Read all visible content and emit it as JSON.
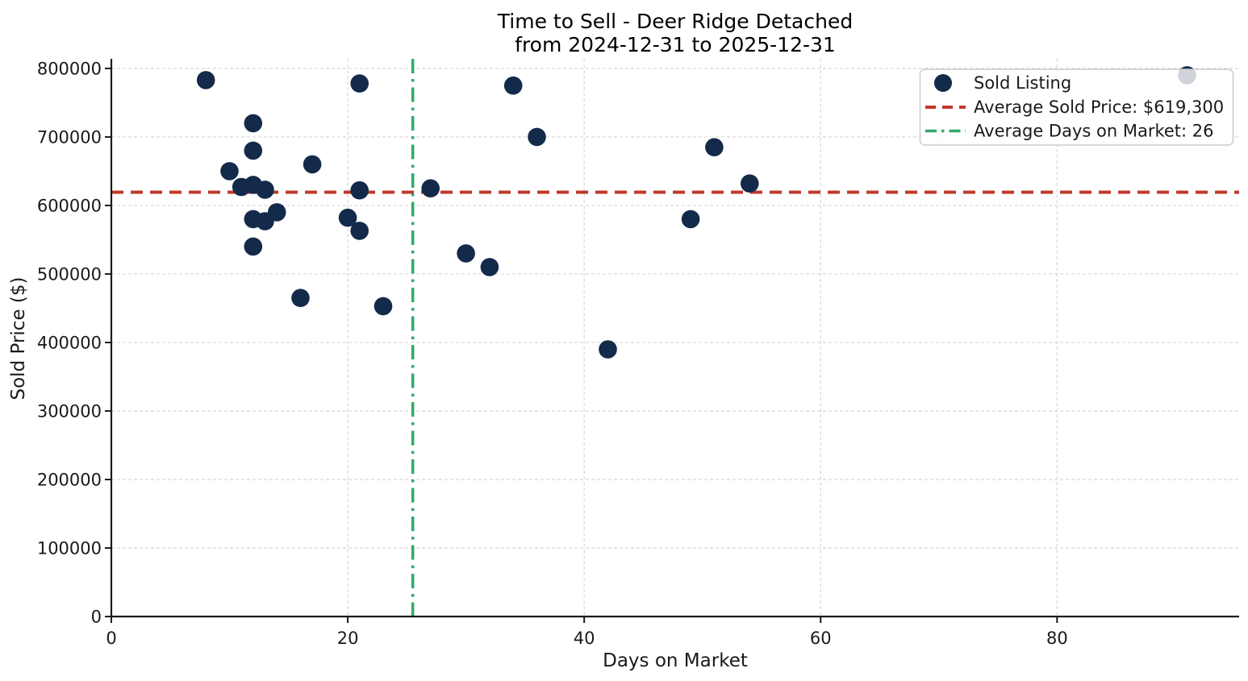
{
  "title": {
    "line1": "Time to Sell - Deer Ridge Detached",
    "line2": "from 2024-12-31 to 2025-12-31"
  },
  "axes": {
    "xlabel": "Days on Market",
    "ylabel": "Sold Price ($)"
  },
  "legend": {
    "items": [
      {
        "label": "Sold Listing",
        "marker": "dot"
      },
      {
        "label": "Average Sold Price: $619,300",
        "marker": "dashed-line"
      },
      {
        "label": "Average Days on Market: 26",
        "marker": "dashdot-line"
      }
    ]
  },
  "colors": {
    "point": "#132a4a",
    "point_faded": "#c2cbd6",
    "avg_price_line": "#c0392b",
    "avg_days_line": "#33a86c",
    "grid": "#d8d8d8",
    "spine": "#1a1a1a",
    "legend_border": "#cccccc"
  },
  "chart_data": {
    "type": "scatter",
    "title": "Time to Sell - Deer Ridge Detached from 2024-12-31 to 2025-12-31",
    "xlabel": "Days on Market",
    "ylabel": "Sold Price ($)",
    "xlim": [
      0,
      95.4
    ],
    "ylim": [
      0,
      814000
    ],
    "x_ticks": [
      0,
      20,
      40,
      60,
      80
    ],
    "y_ticks": [
      0,
      100000,
      200000,
      300000,
      400000,
      500000,
      600000,
      700000,
      800000
    ],
    "grid": true,
    "legend_position": "upper right",
    "series": [
      {
        "name": "Sold Listing",
        "points": [
          [
            8,
            783000
          ],
          [
            10,
            650000
          ],
          [
            11,
            627000
          ],
          [
            12,
            720000
          ],
          [
            12,
            680000
          ],
          [
            12,
            630000
          ],
          [
            12,
            580000
          ],
          [
            12,
            540000
          ],
          [
            13,
            623000
          ],
          [
            13,
            577000
          ],
          [
            14,
            590000
          ],
          [
            16,
            465000
          ],
          [
            17,
            660000
          ],
          [
            20,
            582000
          ],
          [
            21,
            778000
          ],
          [
            21,
            622000
          ],
          [
            21,
            563000
          ],
          [
            23,
            453000
          ],
          [
            27,
            625000
          ],
          [
            30,
            530000
          ],
          [
            32,
            510000
          ],
          [
            34,
            775000
          ],
          [
            36,
            700000
          ],
          [
            42,
            390000
          ],
          [
            49,
            580000
          ],
          [
            51,
            685000
          ],
          [
            54,
            632000
          ],
          [
            91,
            790000
          ]
        ]
      }
    ],
    "reference_lines": [
      {
        "axis": "y",
        "value": 619300,
        "label": "Average Sold Price: $619,300",
        "style": "dashed"
      },
      {
        "axis": "x",
        "value": 25.5,
        "label": "Average Days on Market: 26",
        "style": "dashdot"
      }
    ]
  }
}
